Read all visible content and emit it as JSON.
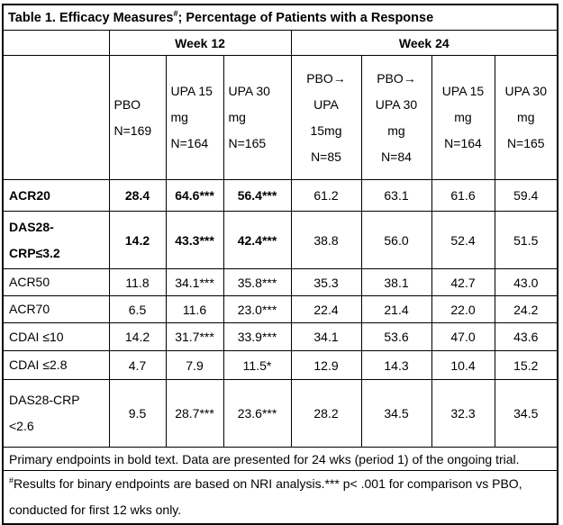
{
  "title": {
    "pre": "Table 1. Efficacy Measures",
    "sup": "#",
    "post": "; Percentage of Patients with a Response"
  },
  "week_headers": {
    "week12": "Week 12",
    "week24": "Week 24"
  },
  "columns": [
    {
      "lines": [
        "PBO",
        "N=169"
      ]
    },
    {
      "lines": [
        "UPA 15",
        "mg",
        "N=164"
      ]
    },
    {
      "lines": [
        "UPA 30",
        "mg",
        "N=165"
      ]
    },
    {
      "lines": [
        "PBO→",
        "UPA",
        "15mg",
        "N=85"
      ]
    },
    {
      "lines": [
        "PBO→",
        "UPA 30",
        "mg",
        "N=84"
      ]
    },
    {
      "lines": [
        "UPA 15",
        "mg",
        "N=164"
      ]
    },
    {
      "lines": [
        "UPA 30",
        "mg",
        "N=165"
      ]
    }
  ],
  "rows": [
    {
      "label_lines": [
        "ACR20"
      ],
      "bold": true,
      "values": [
        "28.4",
        "64.6***",
        "56.4***",
        "61.2",
        "63.1",
        "61.6",
        "59.4"
      ]
    },
    {
      "label_lines": [
        "DAS28-",
        "CRP≤3.2"
      ],
      "bold": true,
      "values": [
        "14.2",
        "43.3***",
        "42.4***",
        "38.8",
        "56.0",
        "52.4",
        "51.5"
      ]
    },
    {
      "label_lines": [
        "ACR50"
      ],
      "bold": false,
      "values": [
        "11.8",
        "34.1***",
        "35.8***",
        "35.3",
        "38.1",
        "42.7",
        "43.0"
      ]
    },
    {
      "label_lines": [
        "ACR70"
      ],
      "bold": false,
      "values": [
        "6.5",
        "11.6",
        "23.0***",
        "22.4",
        "21.4",
        "22.0",
        "24.2"
      ]
    },
    {
      "label_lines": [
        "CDAI ≤10"
      ],
      "bold": false,
      "values": [
        "14.2",
        "31.7***",
        "33.9***",
        "34.1",
        "53.6",
        "47.0",
        "43.6"
      ]
    },
    {
      "label_lines": [
        "CDAI ≤2.8"
      ],
      "bold": false,
      "values": [
        "4.7",
        "7.9",
        "11.5*",
        "12.9",
        "14.3",
        "10.4",
        "15.2"
      ]
    },
    {
      "label_lines": [
        "DAS28-CRP",
        "<2.6"
      ],
      "bold": false,
      "values": [
        "9.5",
        "28.7***",
        "23.6***",
        "28.2",
        "34.5",
        "32.3",
        "34.5"
      ]
    }
  ],
  "footnotes": {
    "line1": "Primary endpoints in bold text. Data are presented for 24 wks (period 1) of the ongoing trial.",
    "line2_sup": "#",
    "line2": "Results for binary endpoints are based on NRI analysis.*** p< .001 for comparison vs PBO, conducted for first 12 wks only."
  }
}
